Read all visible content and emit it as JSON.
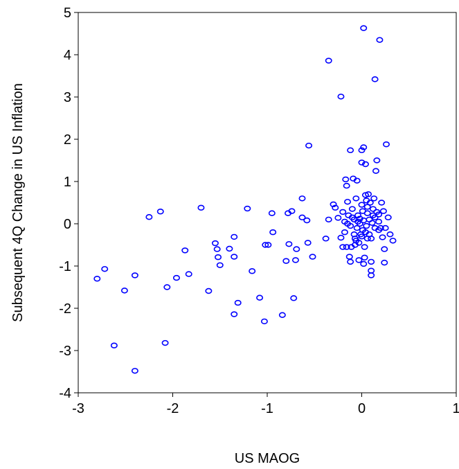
{
  "chart_data": {
    "type": "scatter",
    "title": "",
    "xlabel": "US MAOG",
    "ylabel": "Subsequent 4Q Change in US Inflation",
    "xlim": [
      -3,
      1
    ],
    "ylim": [
      -4,
      5
    ],
    "xticks": [
      -3,
      -2,
      -1,
      0,
      1
    ],
    "yticks": [
      -4,
      -3,
      -2,
      -1,
      0,
      1,
      2,
      3,
      4,
      5
    ],
    "grid": false,
    "marker_color": "#0000ff",
    "points": [
      [
        -2.8,
        -1.3
      ],
      [
        -2.72,
        -1.07
      ],
      [
        -2.62,
        -2.88
      ],
      [
        -2.51,
        -1.58
      ],
      [
        -2.4,
        -1.22
      ],
      [
        -2.4,
        -3.48
      ],
      [
        -2.25,
        0.16
      ],
      [
        -2.13,
        0.29
      ],
      [
        -2.08,
        -2.82
      ],
      [
        -2.06,
        -1.5
      ],
      [
        -1.96,
        -1.28
      ],
      [
        -1.87,
        -0.63
      ],
      [
        -1.83,
        -1.19
      ],
      [
        -1.7,
        0.38
      ],
      [
        -1.62,
        -1.59
      ],
      [
        -1.55,
        -0.46
      ],
      [
        -1.53,
        -0.6
      ],
      [
        -1.52,
        -0.79
      ],
      [
        -1.5,
        -0.98
      ],
      [
        -1.4,
        -0.59
      ],
      [
        -1.35,
        -0.31
      ],
      [
        -1.35,
        -0.78
      ],
      [
        -1.35,
        -2.14
      ],
      [
        -1.31,
        -1.87
      ],
      [
        -1.21,
        0.36
      ],
      [
        -1.16,
        -1.12
      ],
      [
        -1.08,
        -1.75
      ],
      [
        -1.03,
        -2.31
      ],
      [
        -1.02,
        -0.5
      ],
      [
        -0.99,
        -0.5
      ],
      [
        -0.95,
        0.25
      ],
      [
        -0.94,
        -0.2
      ],
      [
        -0.84,
        -2.16
      ],
      [
        -0.8,
        -0.88
      ],
      [
        -0.78,
        0.25
      ],
      [
        -0.77,
        -0.48
      ],
      [
        -0.74,
        0.3
      ],
      [
        -0.72,
        -1.76
      ],
      [
        -0.7,
        -0.86
      ],
      [
        -0.69,
        -0.6
      ],
      [
        -0.63,
        0.6
      ],
      [
        -0.63,
        0.15
      ],
      [
        -0.58,
        0.08
      ],
      [
        -0.57,
        -0.45
      ],
      [
        -0.56,
        1.85
      ],
      [
        -0.52,
        -0.78
      ],
      [
        -0.38,
        -0.35
      ],
      [
        -0.35,
        3.86
      ],
      [
        -0.35,
        0.1
      ],
      [
        -0.3,
        0.46
      ],
      [
        -0.28,
        0.38
      ],
      [
        -0.25,
        0.14
      ],
      [
        -0.22,
        3.01
      ],
      [
        -0.22,
        -0.33
      ],
      [
        -0.2,
        0.28
      ],
      [
        -0.18,
        -0.2
      ],
      [
        -0.17,
        1.05
      ],
      [
        -0.16,
        0.9
      ],
      [
        -0.16,
        -0.55
      ],
      [
        -0.15,
        0.52
      ],
      [
        -0.14,
        0.2
      ],
      [
        -0.12,
        -0.9
      ],
      [
        -0.12,
        1.74
      ],
      [
        -0.11,
        -0.55
      ],
      [
        -0.1,
        0.35
      ],
      [
        -0.09,
        1.07
      ],
      [
        -0.08,
        0.1
      ],
      [
        -0.07,
        -0.35
      ],
      [
        -0.06,
        0.6
      ],
      [
        -0.05,
        -0.1
      ],
      [
        -0.05,
        1.02
      ],
      [
        -0.04,
        0.2
      ],
      [
        -0.03,
        -0.45
      ],
      [
        -0.03,
        -0.86
      ],
      [
        -0.02,
        0.0
      ],
      [
        -0.01,
        -0.25
      ],
      [
        0.0,
        0.45
      ],
      [
        0.0,
        1.74
      ],
      [
        0.0,
        1.45
      ],
      [
        0.01,
        -0.15
      ],
      [
        0.01,
        0.3
      ],
      [
        0.02,
        1.81
      ],
      [
        0.02,
        4.63
      ],
      [
        0.03,
        -0.55
      ],
      [
        0.03,
        -0.8
      ],
      [
        0.04,
        1.41
      ],
      [
        0.04,
        0.68
      ],
      [
        0.05,
        -0.05
      ],
      [
        0.06,
        0.25
      ],
      [
        0.06,
        -0.35
      ],
      [
        0.07,
        0.7
      ],
      [
        0.08,
        -0.25
      ],
      [
        0.09,
        0.5
      ],
      [
        0.1,
        -1.11
      ],
      [
        0.1,
        -0.9
      ],
      [
        0.1,
        -1.22
      ],
      [
        0.11,
        0.02
      ],
      [
        0.12,
        0.35
      ],
      [
        0.13,
        0.6
      ],
      [
        0.14,
        0.15
      ],
      [
        0.14,
        3.42
      ],
      [
        0.15,
        1.25
      ],
      [
        0.16,
        1.5
      ],
      [
        0.18,
        0.05
      ],
      [
        0.18,
        0.22
      ],
      [
        0.19,
        4.35
      ],
      [
        0.2,
        -0.1
      ],
      [
        0.21,
        0.5
      ],
      [
        0.22,
        -0.32
      ],
      [
        0.23,
        0.3
      ],
      [
        0.24,
        -0.6
      ],
      [
        0.24,
        -0.92
      ],
      [
        0.25,
        -0.1
      ],
      [
        0.26,
        1.88
      ],
      [
        0.28,
        0.15
      ],
      [
        0.3,
        -0.25
      ],
      [
        0.33,
        -0.4
      ],
      [
        -0.18,
        0.05
      ],
      [
        -0.15,
        0.0
      ],
      [
        -0.12,
        -0.05
      ],
      [
        -0.1,
        0.15
      ],
      [
        -0.08,
        -0.25
      ],
      [
        -0.06,
        -0.4
      ],
      [
        -0.04,
        0.05
      ],
      [
        -0.02,
        0.12
      ],
      [
        0.0,
        -0.3
      ],
      [
        0.02,
        0.08
      ],
      [
        0.04,
        -0.2
      ],
      [
        0.06,
        0.4
      ],
      [
        0.08,
        0.1
      ],
      [
        0.1,
        -0.35
      ],
      [
        0.12,
        0.2
      ],
      [
        0.14,
        -0.1
      ],
      [
        0.16,
        0.28
      ],
      [
        0.18,
        -0.15
      ],
      [
        -0.2,
        -0.55
      ],
      [
        -0.13,
        -0.78
      ],
      [
        -0.07,
        -0.5
      ],
      [
        0.02,
        -0.95
      ],
      [
        0.05,
        0.55
      ]
    ]
  }
}
